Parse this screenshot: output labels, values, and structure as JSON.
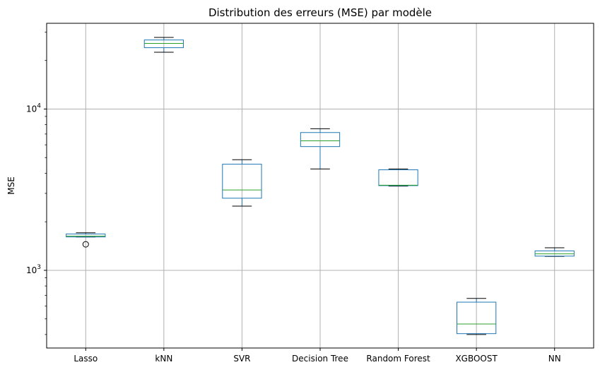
{
  "chart_data": {
    "type": "box",
    "title": "Distribution des erreurs (MSE) par modèle",
    "xlabel": "",
    "ylabel": "MSE",
    "yscale": "log",
    "ylim": [
      330,
      34000
    ],
    "grid": true,
    "y_ticks": [
      {
        "value": 1000,
        "base": "10",
        "exp": "3"
      },
      {
        "value": 10000,
        "base": "10",
        "exp": "4"
      }
    ],
    "categories": [
      "Lasso",
      "kNN",
      "SVR",
      "Decision Tree",
      "Random Forest",
      "XGBOOST",
      "NN"
    ],
    "boxes": [
      {
        "name": "Lasso",
        "whislo": 1610,
        "q1": 1610,
        "med": 1630,
        "q3": 1680,
        "whishi": 1710,
        "fliers": [
          1450
        ]
      },
      {
        "name": "kNN",
        "whislo": 22500,
        "q1": 24000,
        "med": 25500,
        "q3": 26800,
        "whishi": 27800,
        "fliers": []
      },
      {
        "name": "SVR",
        "whislo": 2500,
        "q1": 2800,
        "med": 3150,
        "q3": 4550,
        "whishi": 4850,
        "fliers": []
      },
      {
        "name": "Decision Tree",
        "whislo": 4250,
        "q1": 5850,
        "med": 6350,
        "q3": 7150,
        "whishi": 7550,
        "fliers": []
      },
      {
        "name": "Random Forest",
        "whislo": 3330,
        "q1": 3350,
        "med": 3370,
        "q3": 4200,
        "whishi": 4250,
        "fliers": []
      },
      {
        "name": "XGBOOST",
        "whislo": 400,
        "q1": 405,
        "med": 465,
        "q3": 635,
        "whishi": 670,
        "fliers": []
      },
      {
        "name": "NN",
        "whislo": 1220,
        "q1": 1225,
        "med": 1265,
        "q3": 1320,
        "whishi": 1380,
        "fliers": []
      }
    ],
    "colors": {
      "box": "#1f77b4",
      "median": "#2ca02c",
      "whisker": "#1f77b4",
      "cap": "#000000",
      "flier": "#000000",
      "grid": "#b0b0b0"
    }
  }
}
